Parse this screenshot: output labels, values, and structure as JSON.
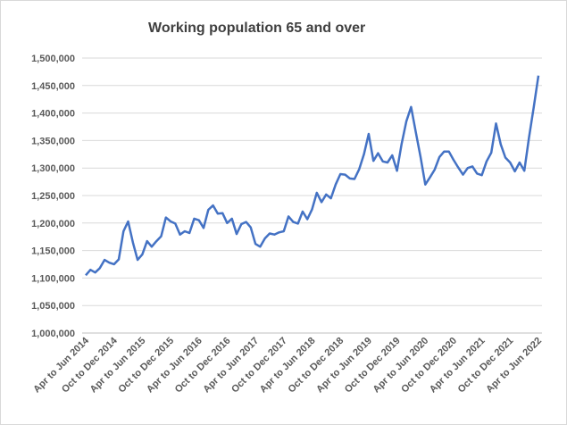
{
  "chart_data": {
    "type": "line",
    "title": "Working population 65 and over",
    "xlabel": "",
    "ylabel": "",
    "ylim": [
      1000000,
      1500000
    ],
    "y_ticks": [
      1000000,
      1050000,
      1100000,
      1150000,
      1200000,
      1250000,
      1300000,
      1350000,
      1400000,
      1450000,
      1500000
    ],
    "y_tick_labels": [
      "1,000,000",
      "1,050,000",
      "1,100,000",
      "1,150,000",
      "1,200,000",
      "1,250,000",
      "1,300,000",
      "1,350,000",
      "1,400,000",
      "1,450,000",
      "1,500,000"
    ],
    "x_tick_labels": [
      "Apr to Jun 2014",
      "Oct to Dec 2014",
      "Apr to Jun 2015",
      "Oct to Dec 2015",
      "Apr to Jun 2016",
      "Oct to Dec 2016",
      "Apr to Jun 2017",
      "Oct to Dec 2017",
      "Apr to Jun 2018",
      "Oct to Dec 2018",
      "Apr to Jun 2019",
      "Oct to Dec 2019",
      "Apr to Jun 2020",
      "Oct to Dec 2020",
      "Apr to Jun 2021",
      "Oct to Dec 2021",
      "Apr to Jun 2022"
    ],
    "grid": true,
    "legend": "none",
    "line_color": "#4472c4",
    "series": [
      {
        "values": [
          1105000,
          1115000,
          1110000,
          1118000,
          1133000,
          1128000,
          1125000,
          1134000,
          1185000,
          1203000,
          1165000,
          1133000,
          1143000,
          1167000,
          1157000,
          1167000,
          1176000,
          1210000,
          1203000,
          1199000,
          1179000,
          1185000,
          1182000,
          1208000,
          1205000,
          1191000,
          1224000,
          1232000,
          1217000,
          1218000,
          1200000,
          1208000,
          1180000,
          1198000,
          1202000,
          1192000,
          1162000,
          1157000,
          1172000,
          1181000,
          1179000,
          1183000,
          1185000,
          1212000,
          1202000,
          1199000,
          1221000,
          1207000,
          1225000,
          1255000,
          1238000,
          1252000,
          1245000,
          1270000,
          1289000,
          1288000,
          1281000,
          1280000,
          1298000,
          1325000,
          1362000,
          1313000,
          1327000,
          1312000,
          1310000,
          1323000,
          1295000,
          1344000,
          1385000,
          1411000,
          1365000,
          1320000,
          1270000,
          1283000,
          1297000,
          1320000,
          1330000,
          1330000,
          1315000,
          1301000,
          1288000,
          1300000,
          1303000,
          1290000,
          1287000,
          1312000,
          1328000,
          1381000,
          1343000,
          1319000,
          1310000,
          1294000,
          1310000,
          1295000,
          1355000,
          1410000,
          1468000
        ]
      }
    ]
  }
}
